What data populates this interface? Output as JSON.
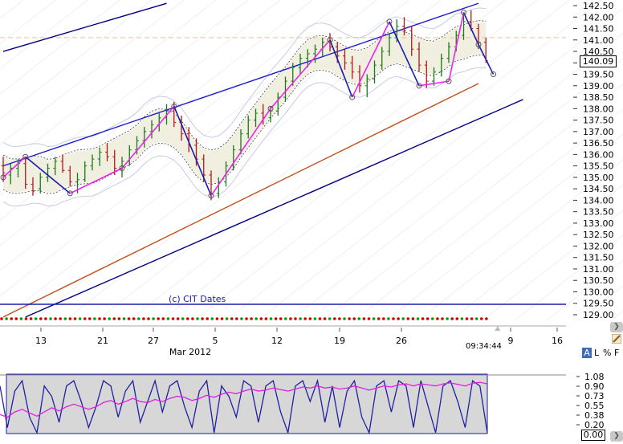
{
  "chart_data": [
    {
      "type": "line",
      "title": "",
      "subtitle": "",
      "xlabel": "",
      "ylabel": "",
      "ylim": [
        129.0,
        142.5
      ],
      "x_tick_labels": [
        "13",
        "21",
        "27",
        "5",
        "12",
        "19",
        "26",
        "9",
        "16"
      ],
      "x_month_label": "Mar 2012",
      "y_ticks": [
        129.0,
        129.5,
        130.0,
        130.5,
        131.0,
        131.5,
        132.0,
        132.5,
        133.0,
        133.5,
        134.0,
        134.5,
        135.0,
        135.5,
        136.0,
        136.5,
        137.0,
        137.5,
        138.0,
        138.5,
        139.0,
        139.5,
        140.0,
        140.5,
        141.0,
        141.5,
        142.0,
        142.5
      ],
      "y_tick_labels": [
        "129.00",
        "129.50",
        "130.00",
        "130.50",
        "131.00",
        "131.50",
        "132.00",
        "132.50",
        "133.00",
        "133.50",
        "134.00",
        "134.50",
        "135.00",
        "135.50",
        "136.00",
        "136.50",
        "137.00",
        "137.50",
        "138.00",
        "138.50",
        "139.00",
        "139.50",
        "140.00",
        "140.50",
        "141.00",
        "141.50",
        "142.00",
        "142.50"
      ],
      "last_price": "140.09",
      "time_label": "09:34:44",
      "annotation": "(c) CIT Dates",
      "grid": true,
      "candles": [
        [
          135.5,
          135.9,
          134.8,
          135.2
        ],
        [
          135.1,
          135.6,
          134.7,
          135.4
        ],
        [
          135.4,
          135.8,
          135.0,
          135.6
        ],
        [
          135.6,
          135.9,
          134.5,
          134.7
        ],
        [
          134.7,
          135.0,
          134.2,
          134.4
        ],
        [
          134.5,
          135.2,
          134.3,
          135.0
        ],
        [
          135.0,
          135.6,
          134.8,
          135.4
        ],
        [
          135.4,
          135.9,
          135.1,
          135.7
        ],
        [
          135.7,
          136.0,
          135.2,
          135.3
        ],
        [
          135.3,
          135.5,
          134.6,
          134.8
        ],
        [
          134.8,
          135.2,
          134.3,
          134.9
        ],
        [
          134.9,
          135.7,
          134.8,
          135.5
        ],
        [
          135.5,
          136.0,
          135.3,
          135.8
        ],
        [
          135.8,
          136.3,
          135.5,
          136.1
        ],
        [
          136.1,
          136.5,
          135.7,
          135.9
        ],
        [
          135.9,
          136.2,
          135.1,
          135.4
        ],
        [
          135.4,
          135.9,
          135.0,
          135.7
        ],
        [
          135.7,
          136.4,
          135.5,
          136.2
        ],
        [
          136.2,
          136.8,
          136.0,
          136.6
        ],
        [
          136.6,
          137.2,
          136.3,
          137.0
        ],
        [
          137.0,
          137.5,
          136.7,
          137.3
        ],
        [
          137.3,
          137.8,
          137.0,
          137.6
        ],
        [
          137.6,
          138.2,
          137.3,
          137.9
        ],
        [
          137.9,
          138.3,
          137.2,
          137.4
        ],
        [
          137.4,
          137.7,
          136.6,
          136.9
        ],
        [
          136.9,
          137.2,
          136.1,
          136.4
        ],
        [
          136.4,
          136.7,
          135.5,
          135.8
        ],
        [
          135.8,
          136.0,
          134.8,
          135.1
        ],
        [
          135.1,
          135.3,
          134.0,
          134.3
        ],
        [
          134.3,
          135.0,
          134.1,
          134.8
        ],
        [
          134.8,
          135.7,
          134.6,
          135.5
        ],
        [
          135.5,
          136.4,
          135.3,
          136.2
        ],
        [
          136.2,
          137.1,
          136.0,
          136.9
        ],
        [
          136.9,
          137.7,
          136.7,
          137.5
        ],
        [
          137.5,
          138.0,
          137.2,
          137.8
        ],
        [
          137.8,
          138.2,
          137.3,
          137.6
        ],
        [
          137.6,
          138.1,
          137.4,
          137.9
        ],
        [
          137.9,
          138.7,
          137.7,
          138.5
        ],
        [
          138.5,
          139.4,
          138.3,
          139.2
        ],
        [
          139.2,
          140.0,
          139.0,
          139.8
        ],
        [
          139.8,
          140.4,
          139.5,
          140.2
        ],
        [
          140.2,
          140.6,
          139.8,
          140.4
        ],
        [
          140.4,
          140.8,
          140.0,
          140.6
        ],
        [
          140.6,
          141.1,
          140.3,
          140.9
        ],
        [
          140.9,
          141.3,
          140.5,
          140.7
        ],
        [
          140.7,
          140.9,
          140.0,
          140.3
        ],
        [
          140.3,
          140.6,
          139.7,
          140.0
        ],
        [
          140.0,
          140.3,
          139.3,
          139.6
        ],
        [
          139.6,
          139.9,
          138.7,
          139.0
        ],
        [
          139.0,
          139.5,
          138.5,
          139.3
        ],
        [
          139.3,
          140.1,
          139.1,
          139.9
        ],
        [
          139.9,
          140.7,
          139.7,
          140.5
        ],
        [
          140.5,
          141.3,
          140.3,
          141.1
        ],
        [
          141.1,
          141.9,
          140.9,
          141.6
        ],
        [
          141.6,
          142.0,
          141.2,
          141.4
        ],
        [
          141.4,
          141.6,
          140.3,
          140.6
        ],
        [
          140.6,
          140.9,
          139.6,
          139.9
        ],
        [
          139.9,
          140.1,
          138.9,
          139.2
        ],
        [
          139.2,
          139.8,
          139.0,
          139.6
        ],
        [
          139.6,
          140.4,
          139.4,
          140.2
        ],
        [
          140.2,
          140.9,
          140.0,
          140.7
        ],
        [
          140.7,
          141.4,
          140.5,
          141.2
        ],
        [
          141.2,
          142.1,
          141.0,
          141.8
        ],
        [
          141.8,
          142.3,
          141.4,
          141.5
        ],
        [
          141.5,
          141.7,
          140.6,
          140.9
        ],
        [
          140.9,
          141.1,
          140.0,
          140.09
        ]
      ],
      "series": [
        {
          "name": "",
          "type": "channel-upper",
          "x": [
            0,
            64
          ],
          "values": [
            135.5,
            142.6
          ]
        },
        {
          "name": "",
          "type": "channel-lower",
          "x": [
            0,
            64
          ],
          "values": [
            128.9,
            139.1
          ]
        },
        {
          "name": "",
          "type": "channel-outer-upper",
          "x": [
            0,
            22
          ],
          "values": [
            140.5,
            142.6
          ]
        },
        {
          "name": "",
          "type": "channel-outer-lower",
          "x": [
            3,
            70
          ],
          "values": [
            128.9,
            138.4
          ]
        }
      ],
      "zigzag": [
        [
          0,
          135.0
        ],
        [
          3,
          135.9
        ],
        [
          9,
          134.3
        ],
        [
          16,
          135.4
        ],
        [
          23,
          138.1
        ],
        [
          28,
          134.2
        ],
        [
          36,
          138.0
        ],
        [
          44,
          141.0
        ],
        [
          47,
          138.5
        ],
        [
          52,
          141.8
        ],
        [
          56,
          139.0
        ],
        [
          60,
          139.2
        ],
        [
          62,
          142.2
        ],
        [
          64,
          140.8
        ],
        [
          66,
          139.5
        ]
      ],
      "dots_row_colors": [
        "#d00000",
        "#00a000"
      ]
    },
    {
      "type": "line",
      "title": "",
      "ylim": [
        0.0,
        1.08
      ],
      "y_ticks": [
        0.2,
        0.38,
        0.55,
        0.73,
        0.9,
        1.08
      ],
      "y_tick_labels": [
        "0.20",
        "0.38",
        "0.55",
        "0.73",
        "0.90",
        "1.08"
      ],
      "current_value": "0.00",
      "series": [
        {
          "name": "",
          "color": "#2020a0",
          "values": [
            0.9,
            0.1,
            0.8,
            1.0,
            0.3,
            0.0,
            0.9,
            0.7,
            0.2,
            0.9,
            1.0,
            0.6,
            0.1,
            0.5,
            1.0,
            0.9,
            0.3,
            0.8,
            1.0,
            0.2,
            0.6,
            1.0,
            0.4,
            0.9,
            1.0,
            0.5,
            0.1,
            0.8,
            1.0,
            0.0,
            0.9,
            0.7,
            0.3,
            1.0,
            0.9,
            0.2,
            0.9,
            1.0,
            0.4,
            0.0,
            0.9,
            1.0,
            0.6,
            1.0,
            0.2,
            0.9,
            0.1,
            0.8,
            1.0,
            0.3,
            0.0,
            0.9,
            1.0,
            0.4,
            1.0,
            0.9,
            0.1,
            1.0,
            0.5,
            0.0,
            0.9,
            1.0,
            0.6,
            0.1,
            1.0,
            0.9,
            0.0
          ]
        },
        {
          "name": "",
          "color": "#e020e0",
          "values": [
            0.35,
            0.3,
            0.4,
            0.45,
            0.38,
            0.32,
            0.4,
            0.48,
            0.42,
            0.5,
            0.55,
            0.5,
            0.45,
            0.5,
            0.58,
            0.62,
            0.55,
            0.6,
            0.66,
            0.6,
            0.58,
            0.64,
            0.6,
            0.66,
            0.7,
            0.68,
            0.62,
            0.66,
            0.72,
            0.68,
            0.74,
            0.78,
            0.75,
            0.8,
            0.84,
            0.8,
            0.82,
            0.86,
            0.83,
            0.8,
            0.84,
            0.88,
            0.86,
            0.9,
            0.86,
            0.88,
            0.84,
            0.86,
            0.9,
            0.86,
            0.82,
            0.86,
            0.9,
            0.88,
            0.92,
            0.94,
            0.9,
            0.94,
            0.92,
            0.9,
            0.94,
            0.96,
            0.93,
            0.9,
            0.95,
            0.97,
            0.94
          ]
        }
      ]
    }
  ],
  "toolbar": {
    "mode_a": "A",
    "mode_l": "L",
    "mode_pct": "%",
    "mode_f": "F",
    "scroll_right": "❯",
    "pencil_icon": "pencil-icon"
  }
}
